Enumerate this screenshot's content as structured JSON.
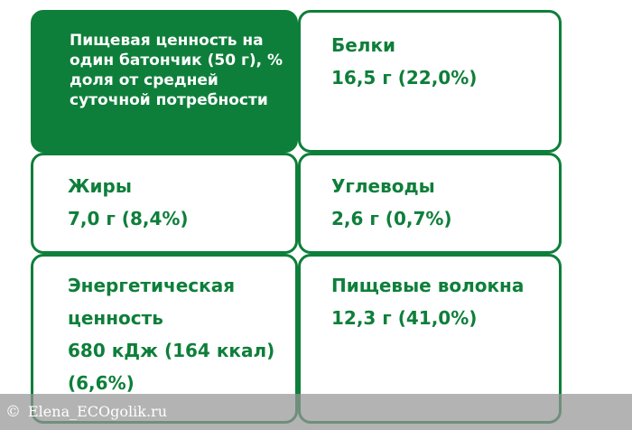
{
  "colors": {
    "brand_green": "#0e7f3a",
    "watermark_overlay": "#969696"
  },
  "header": {
    "text": "Пищевая ценность на один батончик (50 г), % доля от средней суточной потребности"
  },
  "nutrients": {
    "protein": {
      "label": "Белки",
      "value": "16,5 г (22,0%)"
    },
    "fat": {
      "label": "Жиры",
      "value": "7,0 г (8,4%)"
    },
    "carbs": {
      "label": "Углеводы",
      "value": "2,6 г (0,7%)"
    },
    "energy": {
      "label": "Энергетическая ценность",
      "value": "680 кДж (164 ккал) (6,6%)"
    },
    "fiber": {
      "label": "Пищевые волокна",
      "value": "12,3 г (41,0%)"
    }
  },
  "watermark": {
    "symbol": "©",
    "text": "Elena_ECOgolik.ru"
  }
}
